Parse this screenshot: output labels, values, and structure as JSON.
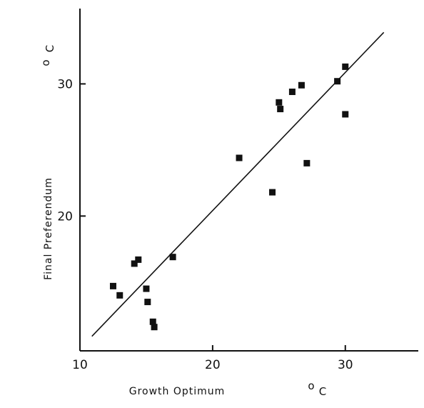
{
  "chart_data": {
    "type": "scatter",
    "title": "",
    "xlabel": "Growth Optimum",
    "xlabel_unit_degree": "o",
    "xlabel_unit_letter": "C",
    "ylabel": "Final Preferendum",
    "ylabel_unit_degree": "o",
    "ylabel_unit_letter": "C",
    "xlim": [
      10,
      35.5
    ],
    "ylim": [
      9.8,
      35.7
    ],
    "x_ticks": [
      10,
      20,
      30
    ],
    "y_ticks": [
      20,
      30
    ],
    "grid": false,
    "series": [
      {
        "marker": "square",
        "points": [
          {
            "x": 12.5,
            "y": 14.7
          },
          {
            "x": 13.0,
            "y": 14.0
          },
          {
            "x": 14.1,
            "y": 16.4
          },
          {
            "x": 14.4,
            "y": 16.7
          },
          {
            "x": 15.0,
            "y": 14.5
          },
          {
            "x": 15.1,
            "y": 13.5
          },
          {
            "x": 15.5,
            "y": 12.0
          },
          {
            "x": 15.6,
            "y": 11.6
          },
          {
            "x": 17.0,
            "y": 16.9
          },
          {
            "x": 22.0,
            "y": 24.4
          },
          {
            "x": 24.5,
            "y": 21.8
          },
          {
            "x": 25.0,
            "y": 28.6
          },
          {
            "x": 25.1,
            "y": 28.1
          },
          {
            "x": 26.0,
            "y": 29.4
          },
          {
            "x": 26.7,
            "y": 29.9
          },
          {
            "x": 27.1,
            "y": 24.0
          },
          {
            "x": 29.4,
            "y": 30.2
          },
          {
            "x": 30.0,
            "y": 31.3
          },
          {
            "x": 30.0,
            "y": 27.7
          }
        ]
      }
    ],
    "trend_line": {
      "x": [
        10.9,
        32.9
      ],
      "y": [
        10.9,
        33.9
      ]
    }
  }
}
